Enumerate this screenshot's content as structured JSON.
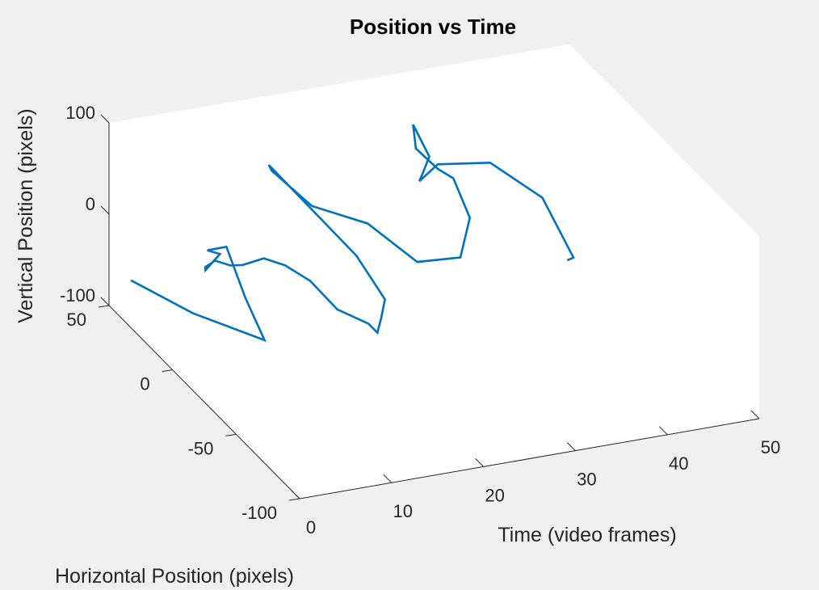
{
  "chart_data": {
    "type": "line",
    "view": "3d",
    "title": "Position vs Time",
    "xlabel": "Time (video frames)",
    "ylabel": "Horizontal Position (pixels)",
    "zlabel": "Vertical Position (pixels)",
    "xlim": [
      0,
      50
    ],
    "ylim": [
      -100,
      50
    ],
    "zlim": [
      -100,
      100
    ],
    "xticks": [
      "0",
      "10",
      "20",
      "30",
      "40",
      "50"
    ],
    "yticks": [
      "-100",
      "-50",
      "0",
      "50"
    ],
    "zticks": [
      "-100",
      "0",
      "100"
    ],
    "grid": false,
    "color": "#0072BD",
    "series": [
      {
        "x": [
          1,
          5,
          10,
          10,
          10,
          10,
          10,
          8,
          7,
          6,
          7,
          9,
          12,
          15,
          18,
          20,
          22,
          22,
          22,
          22,
          20,
          16,
          17,
          20,
          24,
          28,
          32,
          34,
          34,
          33,
          32,
          31,
          30,
          30,
          31,
          33,
          38,
          43,
          45,
          45
        ],
        "y": [
          40,
          20,
          0,
          15,
          30,
          45,
          35,
          32,
          25,
          10,
          5,
          10,
          15,
          20,
          22,
          15,
          5,
          -2,
          -5,
          -8,
          0,
          40,
          45,
          35,
          20,
          10,
          5,
          12,
          25,
          30,
          40,
          35,
          15,
          20,
          30,
          30,
          25,
          20,
          10,
          15
        ],
        "z": [
          -60,
          -75,
          -85,
          -60,
          -25,
          -50,
          -40,
          -50,
          -35,
          -5,
          -5,
          -15,
          -20,
          -40,
          -65,
          -90,
          -95,
          -95,
          -75,
          -50,
          -10,
          40,
          25,
          -5,
          -10,
          -45,
          -40,
          -10,
          15,
          20,
          30,
          65,
          60,
          35,
          10,
          25,
          25,
          -15,
          -70,
          -80
        ]
      }
    ]
  }
}
